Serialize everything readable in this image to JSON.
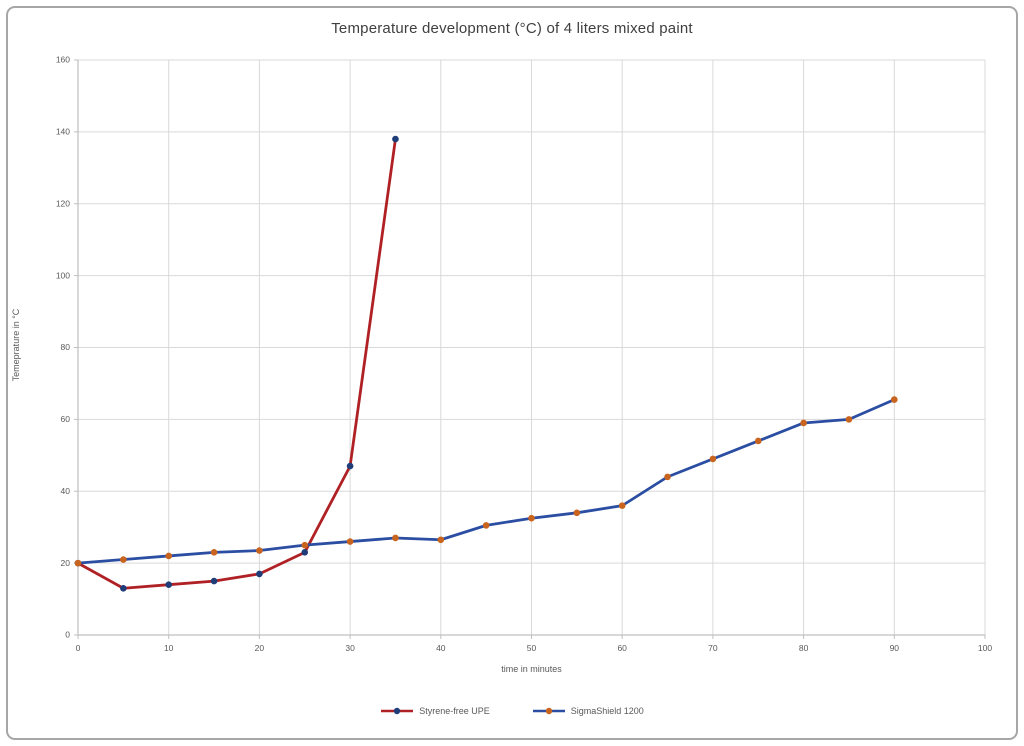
{
  "chart_data": {
    "type": "line",
    "title": "Temperature development (°C) of 4 liters mixed paint",
    "xlabel": "time in minutes",
    "ylabel": "Temeprature in °C",
    "xlim": [
      0,
      100
    ],
    "ylim": [
      0,
      160
    ],
    "xticks": [
      0,
      10,
      20,
      30,
      40,
      50,
      60,
      70,
      80,
      90,
      100
    ],
    "yticks": [
      0,
      20,
      40,
      60,
      80,
      100,
      120,
      140,
      160
    ],
    "grid": true,
    "legend_position": "bottom-center",
    "series": [
      {
        "name": "Styrene-free UPE",
        "x": [
          0,
          5,
          10,
          15,
          20,
          25,
          30,
          35
        ],
        "values": [
          20,
          13,
          14,
          15,
          17,
          23,
          47,
          138
        ],
        "line_color": "#B02125",
        "marker_color": "#1F3D78"
      },
      {
        "name": "SigmaShield 1200",
        "x": [
          0,
          5,
          10,
          15,
          20,
          25,
          30,
          35,
          40,
          45,
          50,
          55,
          60,
          65,
          70,
          75,
          80,
          85,
          90
        ],
        "values": [
          20,
          21,
          22,
          23,
          23.5,
          25,
          26,
          27,
          26.5,
          30.5,
          32.5,
          34,
          36,
          44,
          49,
          54,
          59,
          60,
          65.5
        ],
        "line_color": "#2B4EA2",
        "marker_color": "#C8641E"
      }
    ],
    "style": {
      "grid_color": "#D9D9D9",
      "axis_color": "#BFBFBF",
      "tick_label_color": "#595959",
      "title_color": "#3F3F3F"
    }
  }
}
